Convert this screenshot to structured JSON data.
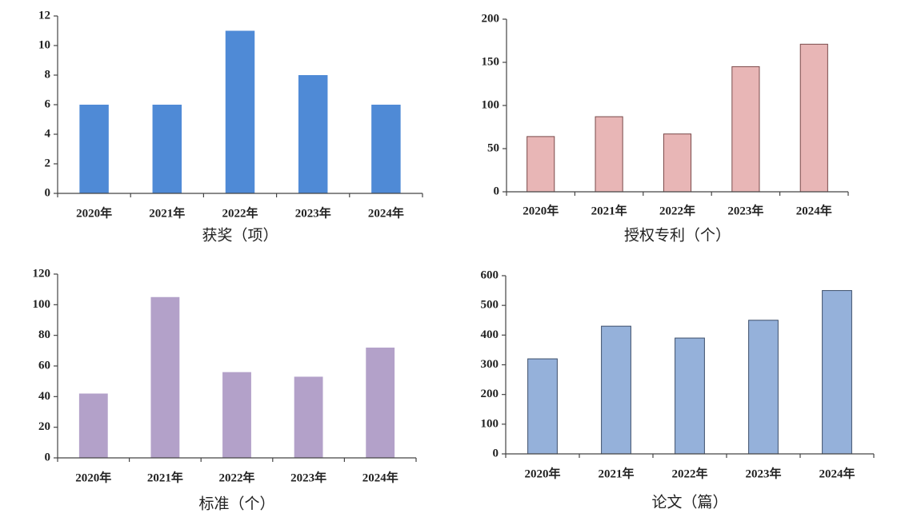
{
  "chart_data": [
    {
      "type": "bar",
      "xlabel": "获奖（项）",
      "categories": [
        "2020年",
        "2021年",
        "2022年",
        "2023年",
        "2024年"
      ],
      "values": [
        6,
        6,
        11,
        8,
        6
      ],
      "color": "#4f8ad6",
      "ylim": [
        0,
        12
      ],
      "yticks": [
        0,
        2,
        4,
        6,
        8,
        10,
        12
      ]
    },
    {
      "type": "bar",
      "xlabel": "授权专利（个）",
      "categories": [
        "2020年",
        "2021年",
        "2022年",
        "2023年",
        "2024年"
      ],
      "values": [
        64,
        87,
        67,
        145,
        171
      ],
      "color": "#e8b6b6",
      "edgecolor": "#7a4a4a",
      "ylim": [
        0,
        200
      ],
      "yticks": [
        0,
        50,
        100,
        150,
        200
      ]
    },
    {
      "type": "bar",
      "xlabel": "标准（个）",
      "categories": [
        "2020年",
        "2021年",
        "2022年",
        "2023年",
        "2024年"
      ],
      "values": [
        42,
        105,
        56,
        53,
        72
      ],
      "color": "#b3a1c9",
      "ylim": [
        0,
        120
      ],
      "yticks": [
        0,
        20,
        40,
        60,
        80,
        100,
        120
      ]
    },
    {
      "type": "bar",
      "xlabel": "论文（篇）",
      "categories": [
        "2020年",
        "2021年",
        "2022年",
        "2023年",
        "2024年"
      ],
      "values": [
        320,
        430,
        390,
        450,
        550
      ],
      "color": "#95b1da",
      "edgecolor": "#3d4f6b",
      "ylim": [
        0,
        600
      ],
      "yticks": [
        0,
        100,
        200,
        300,
        400,
        500,
        600
      ]
    }
  ]
}
